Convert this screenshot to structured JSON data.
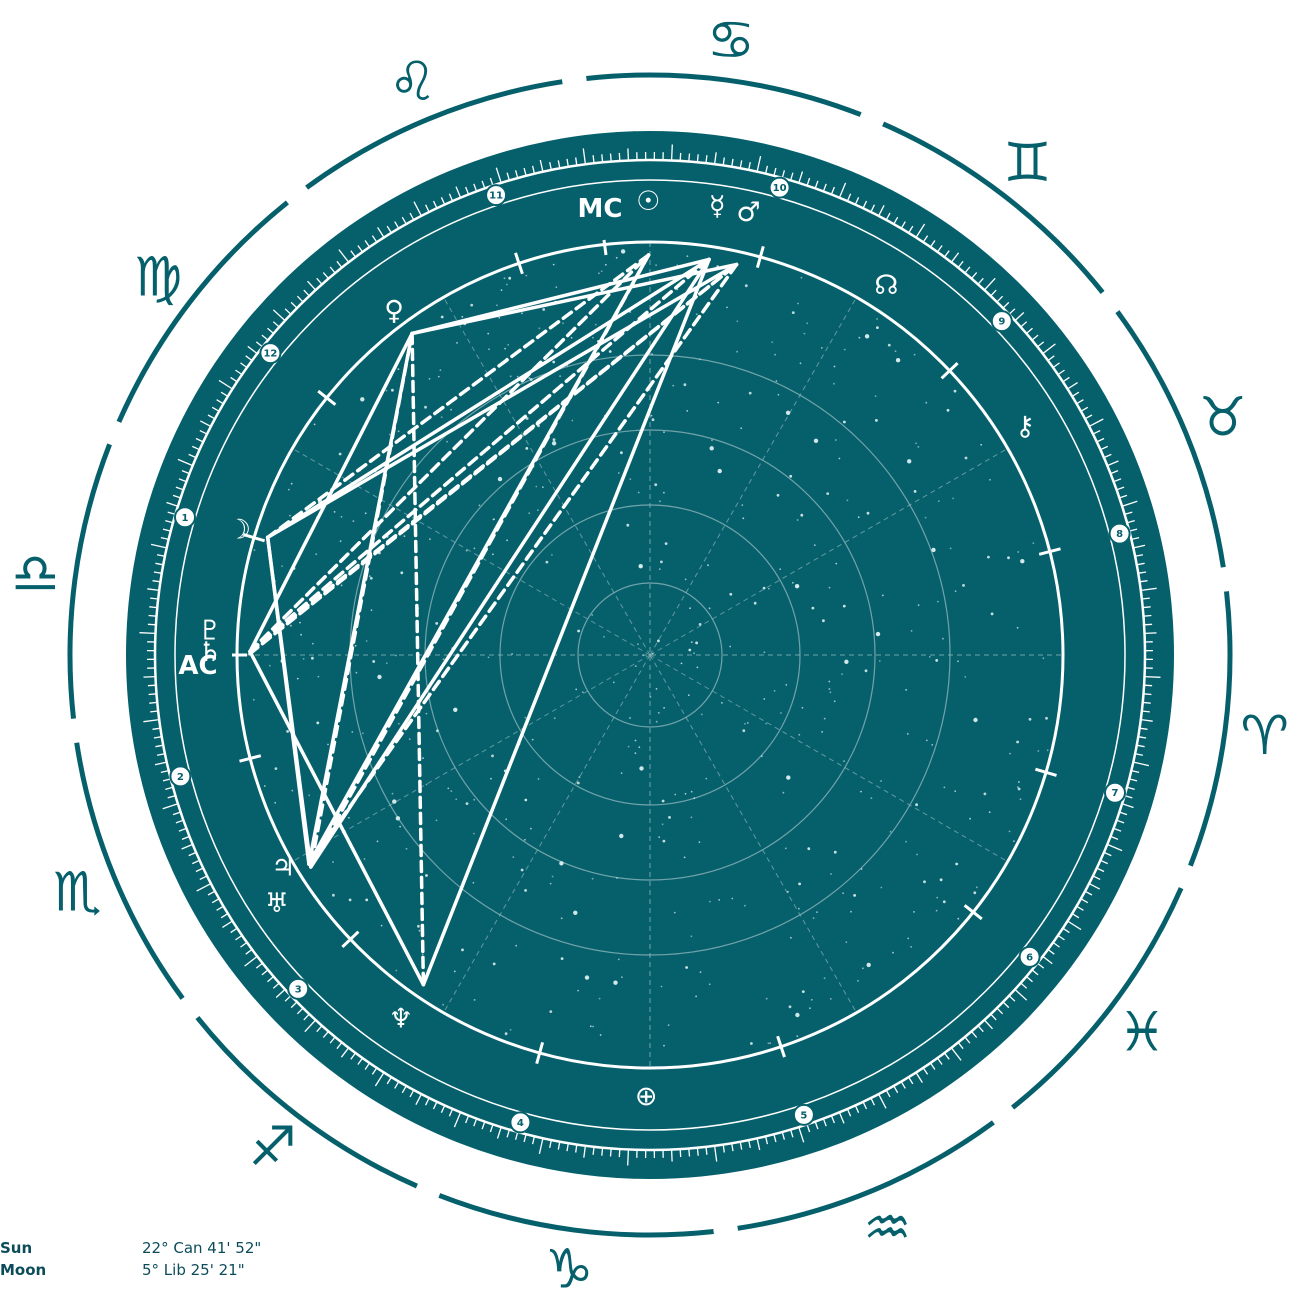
{
  "colors": {
    "teal": "#06606c",
    "line": "#ffffff",
    "legend_text": "#0c4c5a"
  },
  "zodiac": [
    {
      "sign": "Aries",
      "glyph": "♈"
    },
    {
      "sign": "Taurus",
      "glyph": "♉"
    },
    {
      "sign": "Gemini",
      "glyph": "♊"
    },
    {
      "sign": "Cancer",
      "glyph": "♋"
    },
    {
      "sign": "Leo",
      "glyph": "♌"
    },
    {
      "sign": "Virgo",
      "glyph": "♍"
    },
    {
      "sign": "Libra",
      "glyph": "♎"
    },
    {
      "sign": "Scorpio",
      "glyph": "♏"
    },
    {
      "sign": "Sagittarius",
      "glyph": "♐"
    },
    {
      "sign": "Capricorn",
      "glyph": "♑"
    },
    {
      "sign": "Aquarius",
      "glyph": "♒"
    },
    {
      "sign": "Pisces",
      "glyph": "♓"
    }
  ],
  "angles": {
    "ascendant_label": "AC",
    "midheaven_label": "MC"
  },
  "houses": [
    "1",
    "2",
    "3",
    "4",
    "5",
    "6",
    "7",
    "8",
    "9",
    "10",
    "11",
    "12"
  ],
  "planets": [
    {
      "key": "sun",
      "glyph": "☉",
      "longitude": 112.7
    },
    {
      "key": "moon",
      "glyph": "☽",
      "longitude": 185.4
    },
    {
      "key": "mercury",
      "glyph": "☿",
      "longitude": 104.0
    },
    {
      "key": "venus",
      "glyph": "♀",
      "longitude": 149.0
    },
    {
      "key": "mars",
      "glyph": "♂",
      "longitude": 100.0
    },
    {
      "key": "jupiter",
      "glyph": "♃",
      "longitude": 234.0
    },
    {
      "key": "saturn",
      "glyph": "♄",
      "longitude": 202.0
    },
    {
      "key": "uranus",
      "glyph": "♅",
      "longitude": 234.5
    },
    {
      "key": "neptune",
      "glyph": "♆",
      "longitude": 258.0
    },
    {
      "key": "pluto",
      "glyph": "♇",
      "longitude": 202.3
    },
    {
      "key": "node",
      "glyph": "☊",
      "longitude": 80.0
    },
    {
      "key": "chiron",
      "glyph": "⚷",
      "longitude": 54.0
    },
    {
      "key": "fortune",
      "glyph": "⊕",
      "longitude": 292.0
    }
  ],
  "aspects": [
    {
      "from": "venus",
      "to": "mercury",
      "style": "solid"
    },
    {
      "from": "venus",
      "to": "mars",
      "style": "solid"
    },
    {
      "from": "moon",
      "to": "mars",
      "style": "solid"
    },
    {
      "from": "moon",
      "to": "mercury",
      "style": "solid"
    },
    {
      "from": "moon",
      "to": "jupiter",
      "style": "solid"
    },
    {
      "from": "moon",
      "to": "uranus",
      "style": "solid"
    },
    {
      "from": "saturn",
      "to": "neptune",
      "style": "solid"
    },
    {
      "from": "venus",
      "to": "jupiter",
      "style": "solid"
    },
    {
      "from": "mercury",
      "to": "uranus",
      "style": "solid"
    },
    {
      "from": "sun",
      "to": "jupiter",
      "style": "solid"
    },
    {
      "from": "mercury",
      "to": "neptune",
      "style": "solid"
    },
    {
      "from": "saturn",
      "to": "venus",
      "style": "solid"
    },
    {
      "from": "saturn",
      "to": "sun",
      "style": "dashed"
    },
    {
      "from": "saturn",
      "to": "mars",
      "style": "dashed"
    },
    {
      "from": "saturn",
      "to": "mercury",
      "style": "dashed"
    },
    {
      "from": "pluto",
      "to": "mars",
      "style": "dashed"
    },
    {
      "from": "moon",
      "to": "sun",
      "style": "dashed"
    },
    {
      "from": "venus",
      "to": "neptune",
      "style": "dashed"
    },
    {
      "from": "venus",
      "to": "uranus",
      "style": "dashed"
    },
    {
      "from": "sun",
      "to": "uranus",
      "style": "dashed"
    },
    {
      "from": "mars",
      "to": "jupiter",
      "style": "dashed"
    }
  ],
  "legend": [
    {
      "name": "Sun",
      "value": "22° Can 41' 52\""
    },
    {
      "name": "Moon",
      "value": "5° Lib 25' 21\""
    }
  ]
}
